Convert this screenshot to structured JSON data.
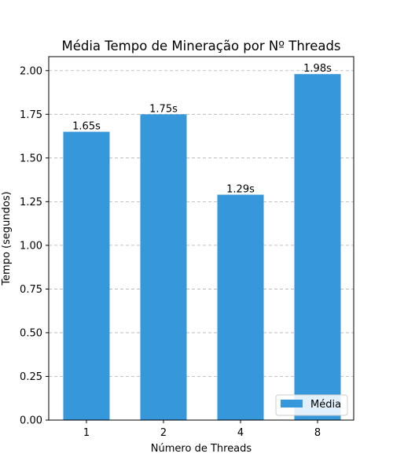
{
  "chart_data": {
    "type": "bar",
    "title": "Média Tempo de Mineração por Nº Threads",
    "xlabel": "Número de Threads",
    "ylabel": "Tempo (segundos)",
    "categories": [
      "1",
      "2",
      "4",
      "8"
    ],
    "series": [
      {
        "name": "Média",
        "values": [
          1.65,
          1.75,
          1.29,
          1.98
        ],
        "color": "#3697db"
      }
    ],
    "data_labels": [
      "1.65s",
      "1.75s",
      "1.29s",
      "1.98s"
    ],
    "ylim": [
      0,
      2.08
    ],
    "yticks": [
      0.0,
      0.25,
      0.5,
      0.75,
      1.0,
      1.25,
      1.5,
      1.75,
      2.0
    ],
    "ytick_labels": [
      "0.00",
      "0.25",
      "0.50",
      "0.75",
      "1.00",
      "1.25",
      "1.50",
      "1.75",
      "2.00"
    ],
    "grid": "y-dashed",
    "legend_position": "lower-right"
  }
}
